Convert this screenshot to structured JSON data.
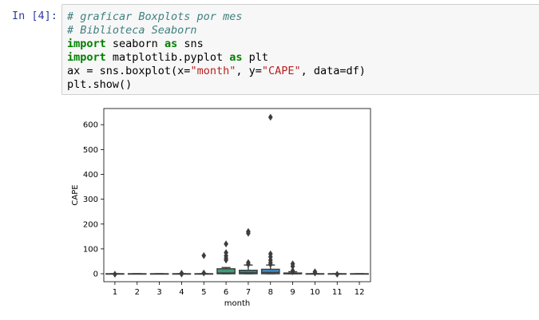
{
  "cell": {
    "prompt": "In [4]:",
    "lines": [
      [
        {
          "c": "cm",
          "t": "# graficar Boxplots por mes"
        }
      ],
      [
        {
          "c": "cm",
          "t": "# Biblioteca Seaborn"
        }
      ],
      [
        {
          "c": "kw",
          "t": "import"
        },
        {
          "c": "",
          "t": " seaborn "
        },
        {
          "c": "kw",
          "t": "as"
        },
        {
          "c": "",
          "t": " sns"
        }
      ],
      [
        {
          "c": "kw",
          "t": "import"
        },
        {
          "c": "",
          "t": " matplotlib.pyplot "
        },
        {
          "c": "kw",
          "t": "as"
        },
        {
          "c": "",
          "t": " plt"
        }
      ],
      [
        {
          "c": "",
          "t": "ax = sns.boxplot(x="
        },
        {
          "c": "st",
          "t": "\"month\""
        },
        {
          "c": "",
          "t": ", y="
        },
        {
          "c": "st",
          "t": "\"CAPE\""
        },
        {
          "c": "",
          "t": ", data=df)"
        }
      ],
      [
        {
          "c": "",
          "t": "plt.show()"
        }
      ]
    ]
  },
  "chart_data": {
    "type": "boxplot",
    "xlabel": "month",
    "ylabel": "CAPE",
    "categories": [
      "1",
      "2",
      "3",
      "4",
      "5",
      "6",
      "7",
      "8",
      "9",
      "10",
      "11",
      "12"
    ],
    "yticks": [
      0,
      100,
      200,
      300,
      400,
      500,
      600
    ],
    "ylim": [
      -32,
      665
    ],
    "boxes": [
      {
        "color": "#3274a1",
        "q1": 0,
        "median": 0,
        "q3": 0,
        "whislo": 0,
        "whishi": 0,
        "fliers": [
          -2
        ]
      },
      {
        "color": "#e1812c",
        "q1": 0,
        "median": 0,
        "q3": 0,
        "whislo": 0,
        "whishi": 0,
        "fliers": []
      },
      {
        "color": "#3a923a",
        "q1": 0,
        "median": 0,
        "q3": 0,
        "whislo": 0,
        "whishi": 0,
        "fliers": []
      },
      {
        "color": "#c03d3e",
        "q1": 0,
        "median": 0,
        "q3": 0,
        "whislo": 0,
        "whishi": 0,
        "fliers": [
          2,
          -1
        ]
      },
      {
        "color": "#9372b2",
        "q1": 0,
        "median": 0,
        "q3": 0,
        "whislo": 0,
        "whishi": 0,
        "fliers": [
          73,
          3
        ]
      },
      {
        "color": "#3f9e77",
        "q1": 0,
        "median": 3,
        "q3": 20,
        "whislo": 0,
        "whishi": 25,
        "fliers": [
          120,
          85,
          72,
          62,
          55
        ]
      },
      {
        "color": "#2e8b8b",
        "q1": 0,
        "median": 4,
        "q3": 14,
        "whislo": 0,
        "whishi": 35,
        "fliers": [
          170,
          163,
          45,
          38
        ]
      },
      {
        "color": "#3a8ac2",
        "q1": 0,
        "median": 5,
        "q3": 18,
        "whislo": 0,
        "whishi": 35,
        "fliers": [
          630,
          80,
          68,
          55,
          45,
          38
        ]
      },
      {
        "color": "#5a6e86",
        "q1": 0,
        "median": 0,
        "q3": 3,
        "whislo": 0,
        "whishi": 8,
        "fliers": [
          40,
          30,
          12,
          8
        ]
      },
      {
        "color": "#5a6e86",
        "q1": 0,
        "median": 0,
        "q3": 0,
        "whislo": 0,
        "whishi": 0,
        "fliers": [
          8,
          3
        ]
      },
      {
        "color": "#5a6e86",
        "q1": 0,
        "median": 0,
        "q3": 0,
        "whislo": 0,
        "whishi": 0,
        "fliers": [
          -2
        ]
      },
      {
        "color": "#5a6e86",
        "q1": 0,
        "median": 0,
        "q3": 0,
        "whislo": 0,
        "whishi": 0,
        "fliers": []
      }
    ],
    "grid": false
  }
}
